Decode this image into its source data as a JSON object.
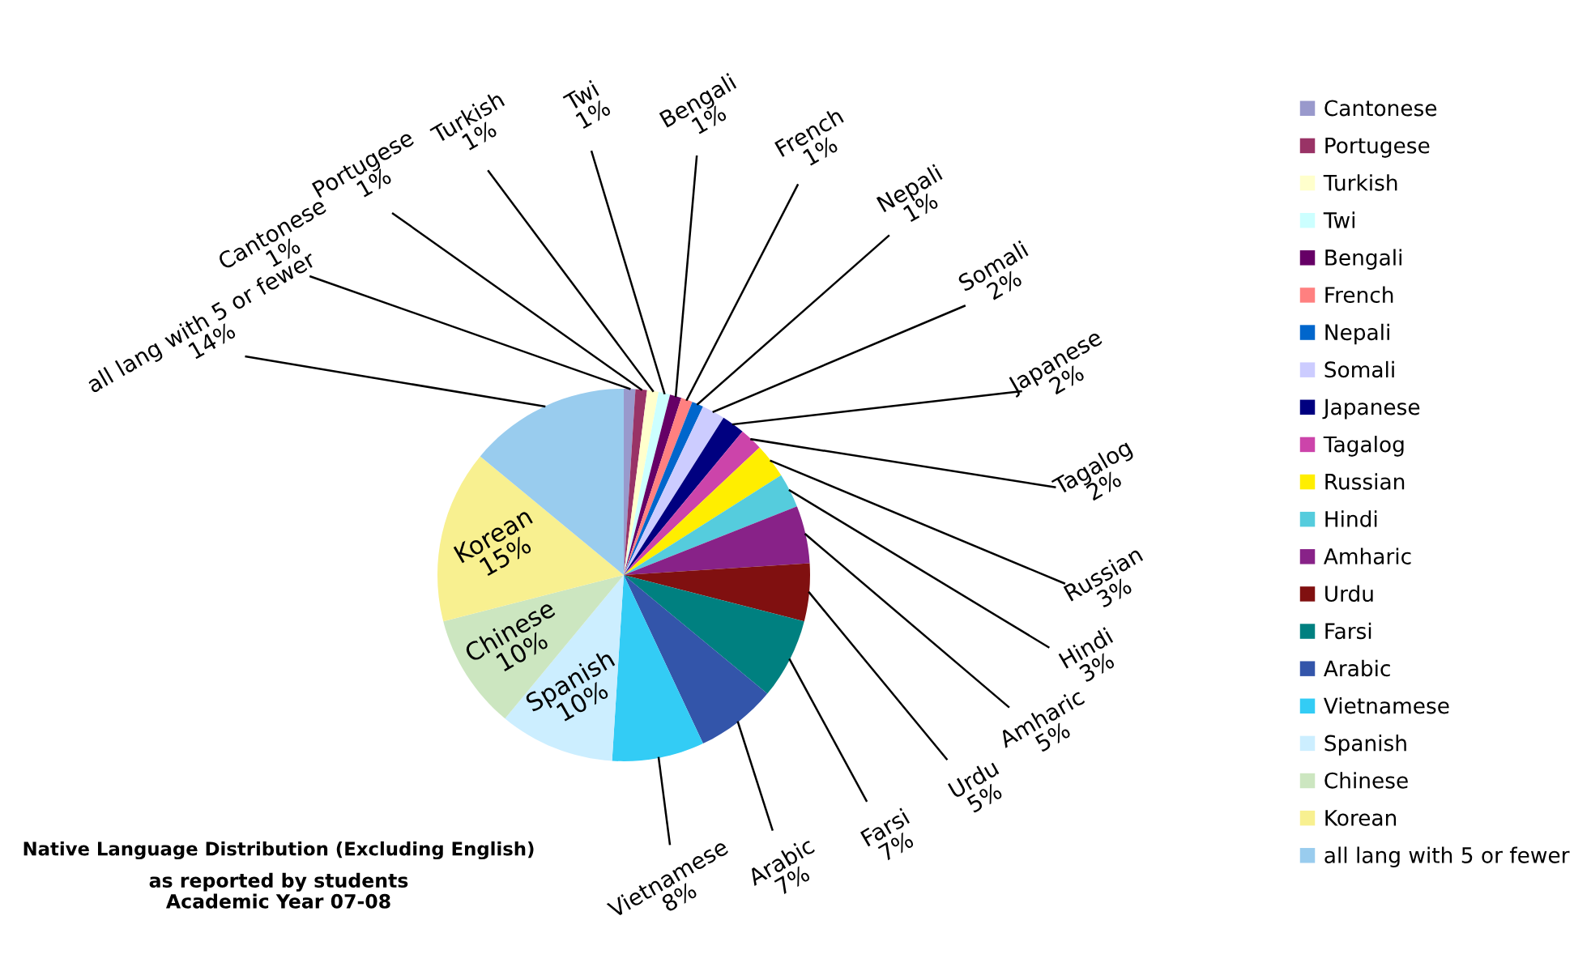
{
  "chart_data": {
    "type": "pie",
    "title": "Native Language Distribution (Excluding English)",
    "subtitle": "as reported by students\nAcademic Year 07-08",
    "categories": [
      "Cantonese",
      "Portugese",
      "Turkish",
      "Twi",
      "Bengali",
      "French",
      "Nepali",
      "Somali",
      "Japanese",
      "Tagalog",
      "Russian",
      "Hindi",
      "Amharic",
      "Urdu",
      "Farsi",
      "Arabic",
      "Vietnamese",
      "Spanish",
      "Chinese",
      "Korean",
      "all lang with 5 or fewer"
    ],
    "values": [
      1,
      1,
      1,
      1,
      1,
      1,
      1,
      2,
      2,
      2,
      3,
      3,
      5,
      5,
      7,
      7,
      8,
      10,
      10,
      15,
      14
    ],
    "colors": [
      "#9999cc",
      "#993366",
      "#ffffcc",
      "#ccffff",
      "#660066",
      "#ff8080",
      "#0066cc",
      "#ccccff",
      "#000080",
      "#cc44aa",
      "#ffee00",
      "#55ccdd",
      "#882288",
      "#801010",
      "#008080",
      "#3355aa",
      "#33ccf5",
      "#cceeff",
      "#cce6c0",
      "#f8f090",
      "#99ccee"
    ],
    "value_labels": [
      "1%",
      "1%",
      "1%",
      "1%",
      "1%",
      "1%",
      "1%",
      "2%",
      "2%",
      "2%",
      "3%",
      "3%",
      "5%",
      "5%",
      "7%",
      "7%",
      "8%",
      "10%",
      "10%",
      "15%",
      "14%"
    ],
    "legend": "right"
  }
}
